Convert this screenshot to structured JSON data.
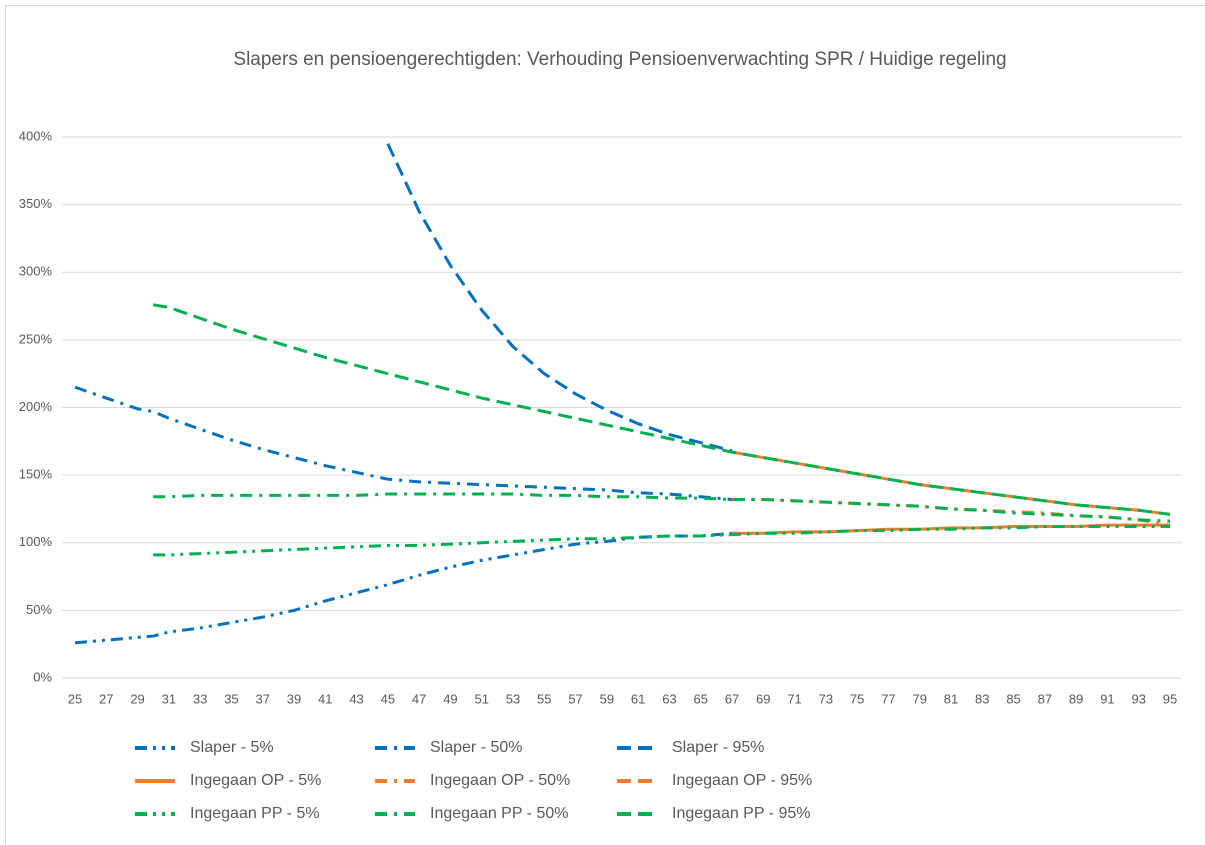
{
  "chart_data": {
    "type": "line",
    "title": "Slapers en pensioengerechtigden: Verhouding Pensioenverwachting SPR / Huidige regeling",
    "x": [
      25,
      27,
      29,
      30,
      31,
      33,
      35,
      37,
      39,
      41,
      43,
      45,
      47,
      49,
      51,
      53,
      55,
      57,
      59,
      61,
      63,
      65,
      67,
      69,
      71,
      73,
      75,
      77,
      79,
      81,
      83,
      85,
      87,
      89,
      91,
      93,
      95
    ],
    "xlim": [
      25,
      95
    ],
    "xticks": [
      25,
      27,
      29,
      31,
      33,
      35,
      37,
      39,
      41,
      43,
      45,
      47,
      49,
      51,
      53,
      55,
      57,
      59,
      61,
      63,
      65,
      67,
      69,
      71,
      73,
      75,
      77,
      79,
      81,
      83,
      85,
      87,
      89,
      91,
      93,
      95
    ],
    "ylim": [
      0,
      400
    ],
    "yticks": [
      {
        "value": 0,
        "label": "0%"
      },
      {
        "value": 50,
        "label": "50%"
      },
      {
        "value": 100,
        "label": "100%"
      },
      {
        "value": 150,
        "label": "150%"
      },
      {
        "value": 200,
        "label": "200%"
      },
      {
        "value": 250,
        "label": "250%"
      },
      {
        "value": 300,
        "label": "300%"
      },
      {
        "value": 350,
        "label": "350%"
      },
      {
        "value": 400,
        "label": "400%"
      }
    ],
    "grid": true,
    "legend": "bottom",
    "series": [
      {
        "name": "Slaper - 5%",
        "color": "#0070c0",
        "dash": "dash-dot-dot",
        "values": [
          26,
          28,
          30,
          31,
          34,
          37,
          41,
          45,
          50,
          57,
          63,
          69,
          76,
          82,
          87,
          91,
          95,
          99,
          101,
          104,
          105,
          105,
          107,
          null,
          null,
          null,
          null,
          null,
          null,
          null,
          null,
          null,
          null,
          null,
          null,
          null,
          null
        ]
      },
      {
        "name": "Slaper - 50%",
        "color": "#0070c0",
        "dash": "dash-dot",
        "values": [
          215,
          207,
          199,
          197,
          192,
          184,
          176,
          169,
          163,
          157,
          152,
          147,
          145,
          144,
          143,
          142,
          141,
          140,
          139,
          137,
          136,
          134,
          132,
          null,
          null,
          null,
          null,
          null,
          null,
          null,
          null,
          null,
          null,
          null,
          null,
          null,
          null
        ]
      },
      {
        "name": "Slaper - 95%",
        "color": "#0070c0",
        "dash": "dash",
        "values": [
          null,
          null,
          null,
          null,
          null,
          null,
          null,
          null,
          null,
          null,
          null,
          395,
          345,
          305,
          272,
          245,
          225,
          210,
          198,
          188,
          180,
          174,
          168,
          null,
          null,
          null,
          null,
          null,
          null,
          null,
          null,
          null,
          null,
          null,
          null,
          null,
          null
        ]
      },
      {
        "name": "Ingegaan OP - 5%",
        "color": "#ed7d31",
        "dash": "solid",
        "values": [
          null,
          null,
          null,
          null,
          null,
          null,
          null,
          null,
          null,
          null,
          null,
          null,
          null,
          null,
          null,
          null,
          null,
          null,
          null,
          null,
          null,
          null,
          107,
          107,
          108,
          108,
          109,
          110,
          110,
          111,
          111,
          112,
          112,
          112,
          113,
          113,
          113
        ]
      },
      {
        "name": "Ingegaan OP - 50%",
        "color": "#ed7d31",
        "dash": "dash-dot",
        "values": [
          null,
          null,
          null,
          null,
          null,
          null,
          null,
          null,
          null,
          null,
          null,
          null,
          null,
          null,
          null,
          null,
          null,
          null,
          null,
          null,
          null,
          null,
          132,
          132,
          131,
          130,
          129,
          128,
          127,
          125,
          124,
          123,
          122,
          120,
          119,
          117,
          113
        ]
      },
      {
        "name": "Ingegaan OP - 95%",
        "color": "#ed7d31",
        "dash": "dash",
        "values": [
          null,
          null,
          null,
          null,
          null,
          null,
          null,
          null,
          null,
          null,
          null,
          null,
          null,
          null,
          null,
          null,
          null,
          null,
          null,
          null,
          null,
          null,
          167,
          163,
          159,
          155,
          151,
          147,
          143,
          140,
          137,
          134,
          131,
          128,
          126,
          124,
          121
        ]
      },
      {
        "name": "Ingegaan PP - 5%",
        "color": "#00b050",
        "dash": "dash-dot-dot",
        "values": [
          null,
          null,
          null,
          91,
          91,
          92,
          93,
          94,
          95,
          96,
          97,
          98,
          98,
          99,
          100,
          101,
          102,
          103,
          103,
          104,
          105,
          105,
          106,
          107,
          107,
          108,
          109,
          109,
          110,
          110,
          111,
          111,
          112,
          112,
          112,
          112,
          112
        ]
      },
      {
        "name": "Ingegaan PP - 50%",
        "color": "#00b050",
        "dash": "dash-dot",
        "values": [
          null,
          null,
          null,
          134,
          134,
          135,
          135,
          135,
          135,
          135,
          135,
          136,
          136,
          136,
          136,
          136,
          135,
          135,
          134,
          134,
          133,
          133,
          132,
          132,
          131,
          130,
          129,
          128,
          127,
          125,
          124,
          122,
          121,
          120,
          119,
          117,
          116
        ]
      },
      {
        "name": "Ingegaan PP - 95%",
        "color": "#00b050",
        "dash": "dash",
        "values": [
          null,
          null,
          null,
          276,
          274,
          266,
          258,
          251,
          244,
          237,
          231,
          225,
          219,
          213,
          207,
          202,
          197,
          192,
          187,
          182,
          177,
          172,
          167,
          163,
          159,
          155,
          151,
          147,
          143,
          140,
          137,
          134,
          131,
          128,
          126,
          124,
          121
        ]
      }
    ]
  }
}
